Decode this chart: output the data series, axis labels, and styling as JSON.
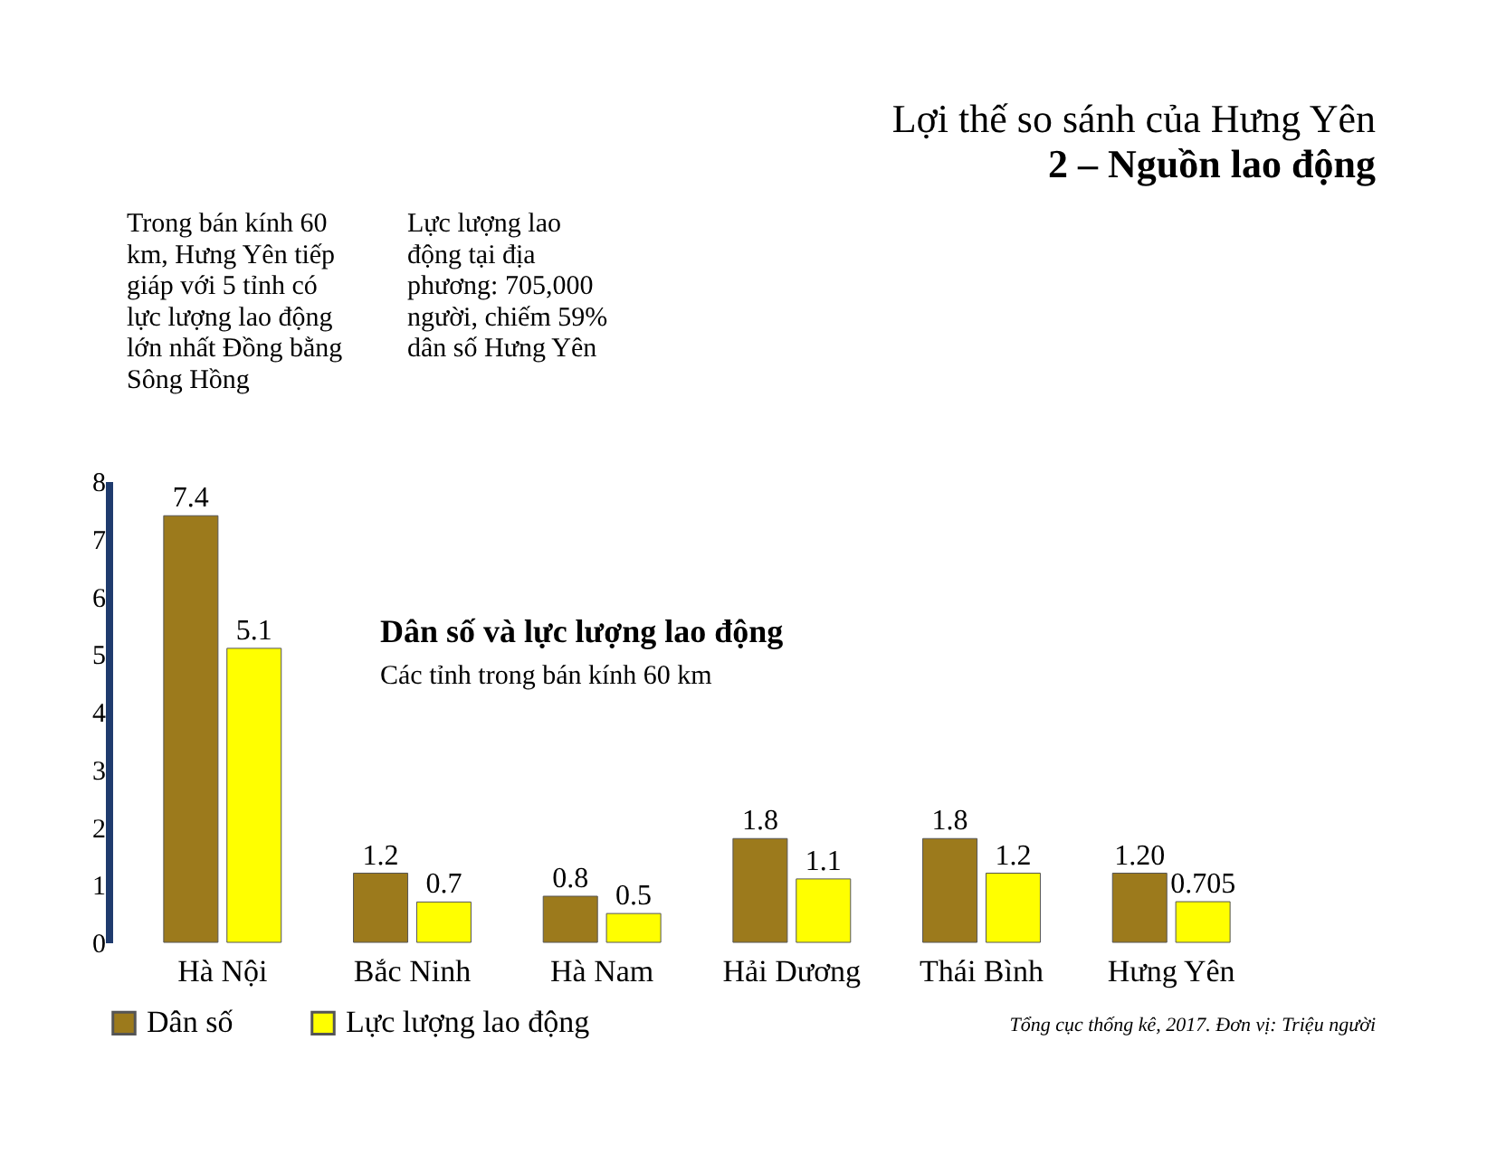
{
  "chart_data": {
    "type": "bar",
    "title": "Lợi thế so sánh của Hưng Yên",
    "subtitle": "2 – Nguồn lao động",
    "categories": [
      "Hà Nội",
      "Bắc Ninh",
      "Hà Nam",
      "Hải Dương",
      "Thái Bình",
      "Hưng Yên"
    ],
    "series": [
      {
        "name": "Dân số",
        "color": "#9c7a1c",
        "values": [
          7.4,
          1.2,
          0.8,
          1.8,
          1.8,
          1.2
        ],
        "value_labels": [
          "7.4",
          "1.2",
          "0.8",
          "1.8",
          "1.8",
          "1.20"
        ]
      },
      {
        "name": "Lực lượng lao động",
        "color": "#ffff00",
        "values": [
          5.1,
          0.7,
          0.5,
          1.1,
          1.2,
          0.705
        ],
        "value_labels": [
          "5.1",
          "0.7",
          "0.5",
          "1.1",
          "1.2",
          "0.705"
        ]
      }
    ],
    "ylim": [
      0,
      8
    ],
    "yticks": [
      0,
      1,
      2,
      3,
      4,
      5,
      6,
      7,
      8
    ],
    "grid": false,
    "legend": "bottom",
    "annotations": [
      "Dân số và lực lượng lao động",
      "Các tỉnh trong bán kính 60 km",
      "Trong bán kính 60 km, Hưng Yên tiếp giáp với 5 tỉnh có lực lượng lao động lớn nhất Đồng bằng Sông Hồng",
      "Lực lượng lao động tại địa phương: 705,000 người, chiếm 59% dân số Hưng Yên",
      "Tổng cục thống kê, 2017. Đơn vị: Triệu người"
    ]
  }
}
